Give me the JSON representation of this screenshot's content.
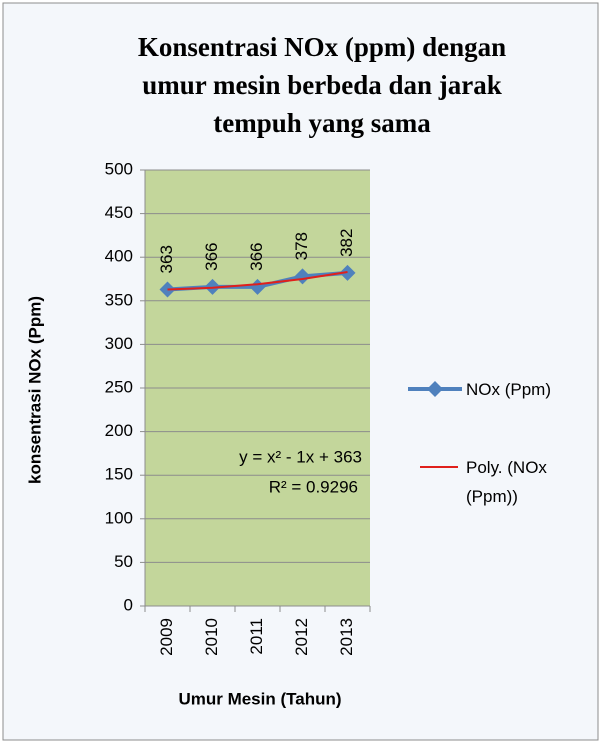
{
  "chart_data": {
    "type": "line",
    "title": "Konsentrasi NOx (ppm) dengan umur mesin berbeda dan jarak tempuh yang sama",
    "xlabel": "Umur Mesin (Tahun)",
    "ylabel": "konsentrasi NOx (Ppm)",
    "categories": [
      "2009",
      "2010",
      "2011",
      "2012",
      "2013"
    ],
    "series": [
      {
        "name": "NOx (Ppm)",
        "color": "#4f81bd",
        "values": [
          363,
          366,
          366,
          378,
          382
        ],
        "markers": true,
        "data_labels": true
      },
      {
        "name": "Poly. (NOx (Ppm))",
        "color": "#e0201b",
        "values": [
          363,
          365,
          369,
          375,
          383
        ],
        "markers": false,
        "data_labels": false
      }
    ],
    "annotations": [
      "y = x² - 1x + 363",
      "R² = 0.9296"
    ],
    "ylim": [
      0,
      500
    ],
    "yticks": [
      0,
      50,
      100,
      150,
      200,
      250,
      300,
      350,
      400,
      450,
      500
    ],
    "grid": true,
    "plot_background": "#c3d69b",
    "legend": "right"
  }
}
